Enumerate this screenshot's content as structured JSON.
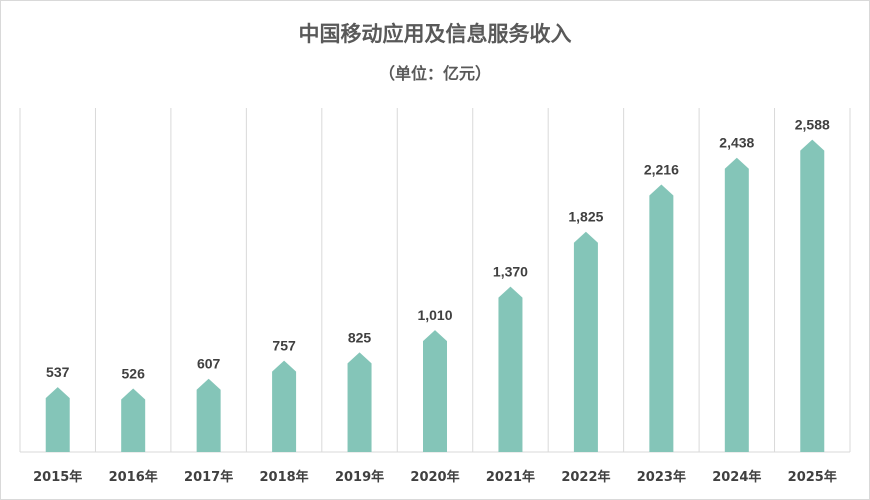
{
  "chart_data": {
    "type": "bar",
    "title": "中国移动应用及信息服务收入",
    "subtitle": "（单位：亿元）",
    "categories": [
      "2015年",
      "2016年",
      "2017年",
      "2018年",
      "2019年",
      "2020年",
      "2021年",
      "2022年",
      "2023年",
      "2024年",
      "2025年"
    ],
    "values": [
      537,
      526,
      607,
      757,
      825,
      1010,
      1370,
      1825,
      2216,
      2438,
      2588
    ],
    "value_labels": [
      "537",
      "526",
      "607",
      "757",
      "825",
      "1,010",
      "1,370",
      "1,825",
      "2,216",
      "2,438",
      "2,588"
    ],
    "ylim": [
      0,
      2800
    ],
    "grid": "vertical category separators",
    "bar_color": "#84C5B8",
    "grid_color": "#d9d9d9"
  }
}
